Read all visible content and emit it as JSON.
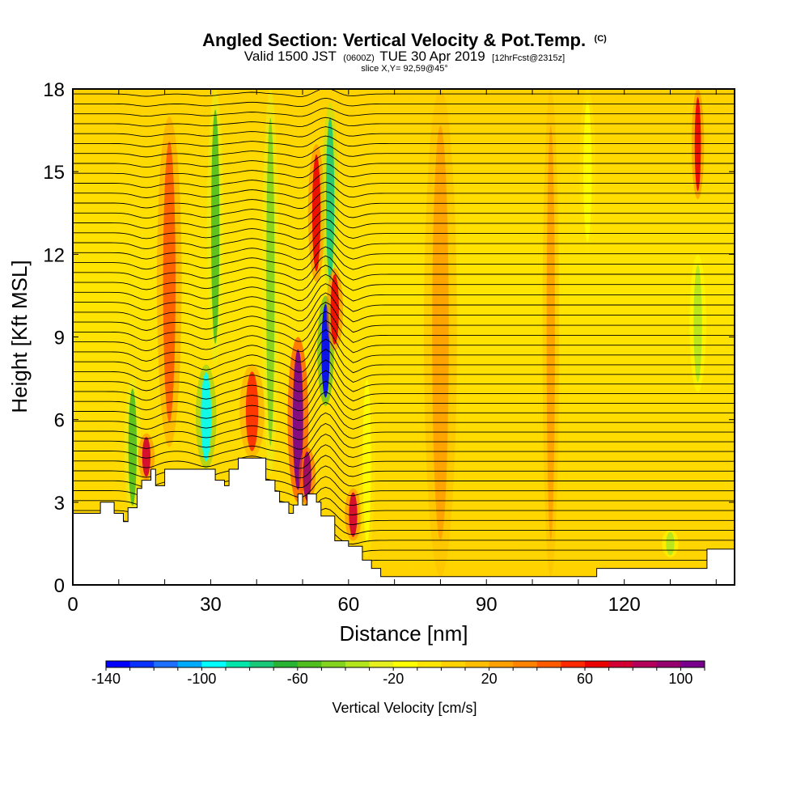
{
  "chart_data": {
    "type": "heatmap",
    "title": "Angled Section: Vertical Velocity & Pot.Temp.",
    "title_unit": "(C)",
    "subtitle_parts": {
      "valid_local": "Valid 1500 JST",
      "valid_utc": "(0600Z)",
      "date": "TUE 30 Apr 2019",
      "forecast": "[12hrFcst@2315z]"
    },
    "slice_label": "slice X,Y= 92,59@45°",
    "xlabel": "Distance [nm]",
    "ylabel": "Height [Kft MSL]",
    "xlim": [
      0,
      144
    ],
    "ylim": [
      0,
      18
    ],
    "x_ticks": [
      "0",
      "30",
      "60",
      "90",
      "120"
    ],
    "x_tick_values": [
      0,
      30,
      60,
      90,
      120
    ],
    "x_minor_step": 10,
    "y_ticks": [
      "0",
      "3",
      "6",
      "9",
      "12",
      "15",
      "18"
    ],
    "y_tick_values": [
      0,
      3,
      6,
      9,
      12,
      15,
      18
    ],
    "colorbar": {
      "label": "Vertical Velocity [cm/s]",
      "min": -140,
      "max": 110,
      "step": 10,
      "tick_labels": [
        "-140",
        "-100",
        "-60",
        "-20",
        "20",
        "60",
        "100"
      ],
      "tick_values": [
        -140,
        -100,
        -60,
        -20,
        20,
        60,
        100
      ],
      "colors": [
        "#0000ff",
        "#0a32ff",
        "#1e6eff",
        "#00aaff",
        "#00ffff",
        "#00e6aa",
        "#19c878",
        "#28b432",
        "#50be1e",
        "#82d21e",
        "#b4e61e",
        "#e6f01e",
        "#ffff00",
        "#ffe600",
        "#ffd200",
        "#ffbe00",
        "#ffa000",
        "#ff8200",
        "#ff5a00",
        "#ff2800",
        "#eb0000",
        "#d20032",
        "#b4005a",
        "#96006e",
        "#78008c"
      ]
    },
    "terrain_kft": {
      "x": [
        0,
        6,
        6,
        9,
        9,
        11,
        11,
        12,
        12,
        14,
        14,
        15,
        15,
        17,
        17,
        18,
        18,
        20,
        20,
        24,
        24,
        26,
        26,
        31,
        31,
        33,
        33,
        34,
        34,
        36,
        36,
        37,
        37,
        42,
        42,
        44,
        44,
        45,
        45,
        47,
        47,
        48,
        48,
        49,
        49,
        50,
        50,
        51,
        51,
        53,
        53,
        54,
        54,
        57,
        57,
        58,
        58,
        60,
        60,
        63,
        63,
        65,
        65,
        67,
        67,
        71,
        71,
        108,
        108,
        114,
        114,
        125,
        125,
        138,
        138,
        144
      ],
      "y": [
        2.6,
        2.6,
        3.0,
        3.0,
        2.6,
        2.6,
        2.3,
        2.3,
        2.8,
        2.8,
        3.5,
        3.5,
        3.8,
        3.8,
        4.2,
        4.2,
        3.6,
        3.6,
        4.2,
        4.2,
        4.2,
        4.2,
        4.2,
        4.2,
        3.8,
        3.8,
        3.6,
        3.6,
        4.2,
        4.2,
        4.6,
        4.6,
        4.6,
        4.6,
        3.8,
        3.8,
        3.4,
        3.4,
        3.0,
        3.0,
        2.6,
        2.6,
        2.9,
        2.9,
        3.3,
        3.3,
        2.9,
        2.9,
        3.3,
        3.3,
        3.0,
        3.0,
        2.5,
        2.5,
        1.6,
        1.6,
        1.6,
        1.6,
        1.4,
        1.4,
        0.9,
        0.9,
        0.6,
        0.6,
        0.3,
        0.3,
        0.3,
        0.3,
        0.3,
        0.3,
        0.6,
        0.6,
        0.6,
        0.6,
        1.3,
        1.3
      ]
    },
    "vertical_velocity_features": [
      {
        "x_center": 13,
        "x_width": 2.0,
        "y_min": 2.5,
        "y_max": 7.5,
        "value": -60
      },
      {
        "x_center": 16,
        "x_width": 2.0,
        "y_min": 3.8,
        "y_max": 5.5,
        "value": 70
      },
      {
        "x_center": 21,
        "x_width": 3.0,
        "y_min": 5.0,
        "y_max": 17.0,
        "value": 40
      },
      {
        "x_center": 29,
        "x_width": 2.5,
        "y_min": 4.2,
        "y_max": 8.0,
        "value": -100
      },
      {
        "x_center": 31,
        "x_width": 2.0,
        "y_min": 8.0,
        "y_max": 18.0,
        "value": -60
      },
      {
        "x_center": 39,
        "x_width": 3.0,
        "y_min": 4.6,
        "y_max": 8.0,
        "value": 50
      },
      {
        "x_center": 43,
        "x_width": 2.0,
        "y_min": 4.0,
        "y_max": 18.0,
        "value": -50
      },
      {
        "x_center": 49,
        "x_width": 2.5,
        "y_min": 3.0,
        "y_max": 9.0,
        "value": 100
      },
      {
        "x_center": 51,
        "x_width": 2.0,
        "y_min": 2.9,
        "y_max": 5.0,
        "value": 90
      },
      {
        "x_center": 53,
        "x_width": 2.0,
        "y_min": 11.0,
        "y_max": 16.0,
        "value": 60
      },
      {
        "x_center": 55,
        "x_width": 2.0,
        "y_min": 6.5,
        "y_max": 10.5,
        "value": -140
      },
      {
        "x_center": 56,
        "x_width": 2.0,
        "y_min": 10.5,
        "y_max": 17.5,
        "value": -80
      },
      {
        "x_center": 57,
        "x_width": 2.0,
        "y_min": 8.5,
        "y_max": 11.5,
        "value": 60
      },
      {
        "x_center": 61,
        "x_width": 2.0,
        "y_min": 1.6,
        "y_max": 3.5,
        "value": 70
      },
      {
        "x_center": 64,
        "x_width": 2.0,
        "y_min": 1.0,
        "y_max": 8.0,
        "value": -20
      },
      {
        "x_center": 80,
        "x_width": 4.0,
        "y_min": 0.3,
        "y_max": 18.0,
        "value": 20
      },
      {
        "x_center": 104,
        "x_width": 2.0,
        "y_min": 0.3,
        "y_max": 18.0,
        "value": 20
      },
      {
        "x_center": 112,
        "x_width": 2.0,
        "y_min": 12.0,
        "y_max": 18.0,
        "value": -20
      },
      {
        "x_center": 136,
        "x_width": 1.5,
        "y_min": 14.0,
        "y_max": 18.0,
        "value": 60
      },
      {
        "x_center": 136,
        "x_width": 2.0,
        "y_min": 7.0,
        "y_max": 12.0,
        "value": -40
      },
      {
        "x_center": 130,
        "x_width": 2.0,
        "y_min": 1.0,
        "y_max": 2.0,
        "value": -40
      }
    ]
  }
}
